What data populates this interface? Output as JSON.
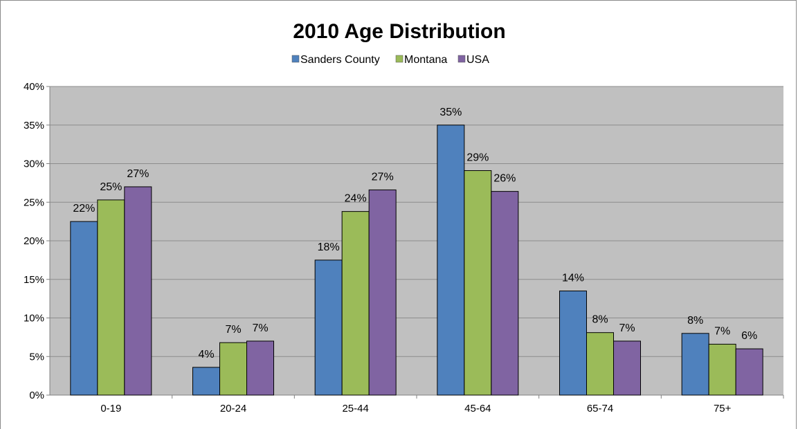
{
  "chart_data": {
    "type": "bar",
    "title": "2010 Age Distribution",
    "xlabel": "",
    "ylabel": "",
    "categories": [
      "0-19",
      "20-24",
      "25-44",
      "45-64",
      "65-74",
      "75+"
    ],
    "series": [
      {
        "name": "Sanders County",
        "color": "#4f81bd",
        "values": [
          22.5,
          3.6,
          17.5,
          35.0,
          13.5,
          8.0
        ],
        "labels": [
          "22%",
          "4%",
          "18%",
          "35%",
          "14%",
          "8%"
        ]
      },
      {
        "name": "Montana",
        "color": "#9bbb59",
        "values": [
          25.3,
          6.8,
          23.8,
          29.1,
          8.1,
          6.6
        ],
        "labels": [
          "25%",
          "7%",
          "24%",
          "29%",
          "8%",
          "7%"
        ]
      },
      {
        "name": "USA",
        "color": "#8064a2",
        "values": [
          27.0,
          7.0,
          26.6,
          26.4,
          7.0,
          6.0
        ],
        "labels": [
          "27%",
          "7%",
          "27%",
          "26%",
          "7%",
          "6%"
        ]
      }
    ],
    "ylim": [
      0,
      40
    ],
    "yticks": [
      0,
      5,
      10,
      15,
      20,
      25,
      30,
      35,
      40
    ],
    "ytick_labels": [
      "0%",
      "5%",
      "10%",
      "15%",
      "20%",
      "25%",
      "30%",
      "35%",
      "40%"
    ],
    "grid": true,
    "legend_position": "top"
  }
}
